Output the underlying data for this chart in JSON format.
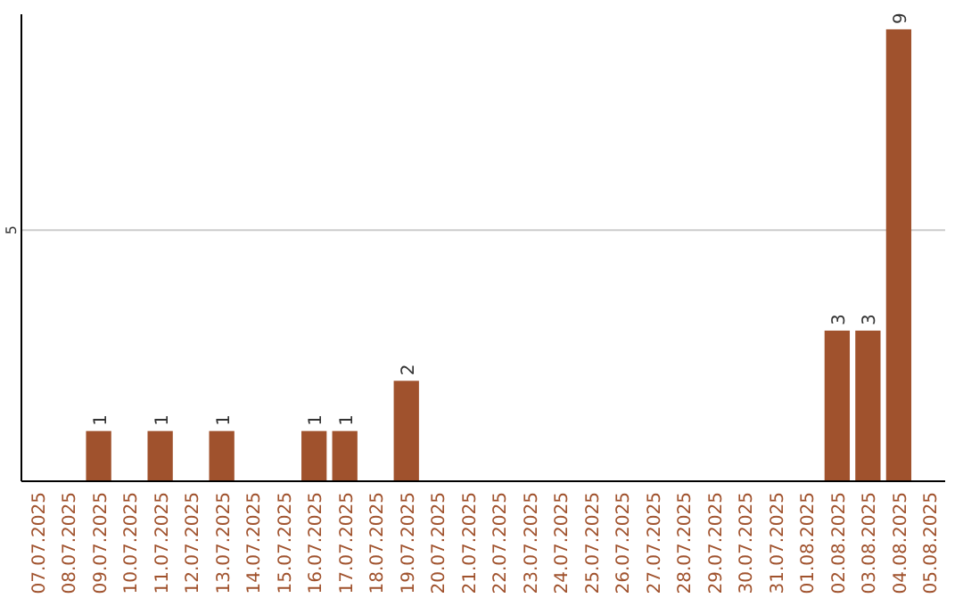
{
  "chart_data": {
    "type": "bar",
    "categories": [
      "07.07.2025",
      "08.07.2025",
      "09.07.2025",
      "10.07.2025",
      "11.07.2025",
      "12.07.2025",
      "13.07.2025",
      "14.07.2025",
      "15.07.2025",
      "16.07.2025",
      "17.07.2025",
      "18.07.2025",
      "19.07.2025",
      "20.07.2025",
      "21.07.2025",
      "22.07.2025",
      "23.07.2025",
      "24.07.2025",
      "25.07.2025",
      "26.07.2025",
      "27.07.2025",
      "28.07.2025",
      "29.07.2025",
      "30.07.2025",
      "31.07.2025",
      "01.08.2025",
      "02.08.2025",
      "03.08.2025",
      "04.08.2025",
      "05.08.2025"
    ],
    "values": [
      0,
      0,
      1,
      0,
      1,
      0,
      1,
      0,
      0,
      1,
      1,
      0,
      2,
      0,
      0,
      0,
      0,
      0,
      0,
      0,
      0,
      0,
      0,
      0,
      0,
      0,
      3,
      3,
      9,
      0
    ],
    "value_labels": [
      null,
      null,
      "1",
      null,
      "1",
      null,
      "1",
      null,
      null,
      "1",
      "1",
      null,
      "2",
      null,
      null,
      null,
      null,
      null,
      null,
      null,
      null,
      null,
      null,
      null,
      null,
      null,
      "3",
      "3",
      "9",
      null
    ],
    "color": "#a0522d",
    "ylim": [
      0,
      9.3
    ],
    "yticks": [
      5
    ],
    "grid": "y"
  }
}
